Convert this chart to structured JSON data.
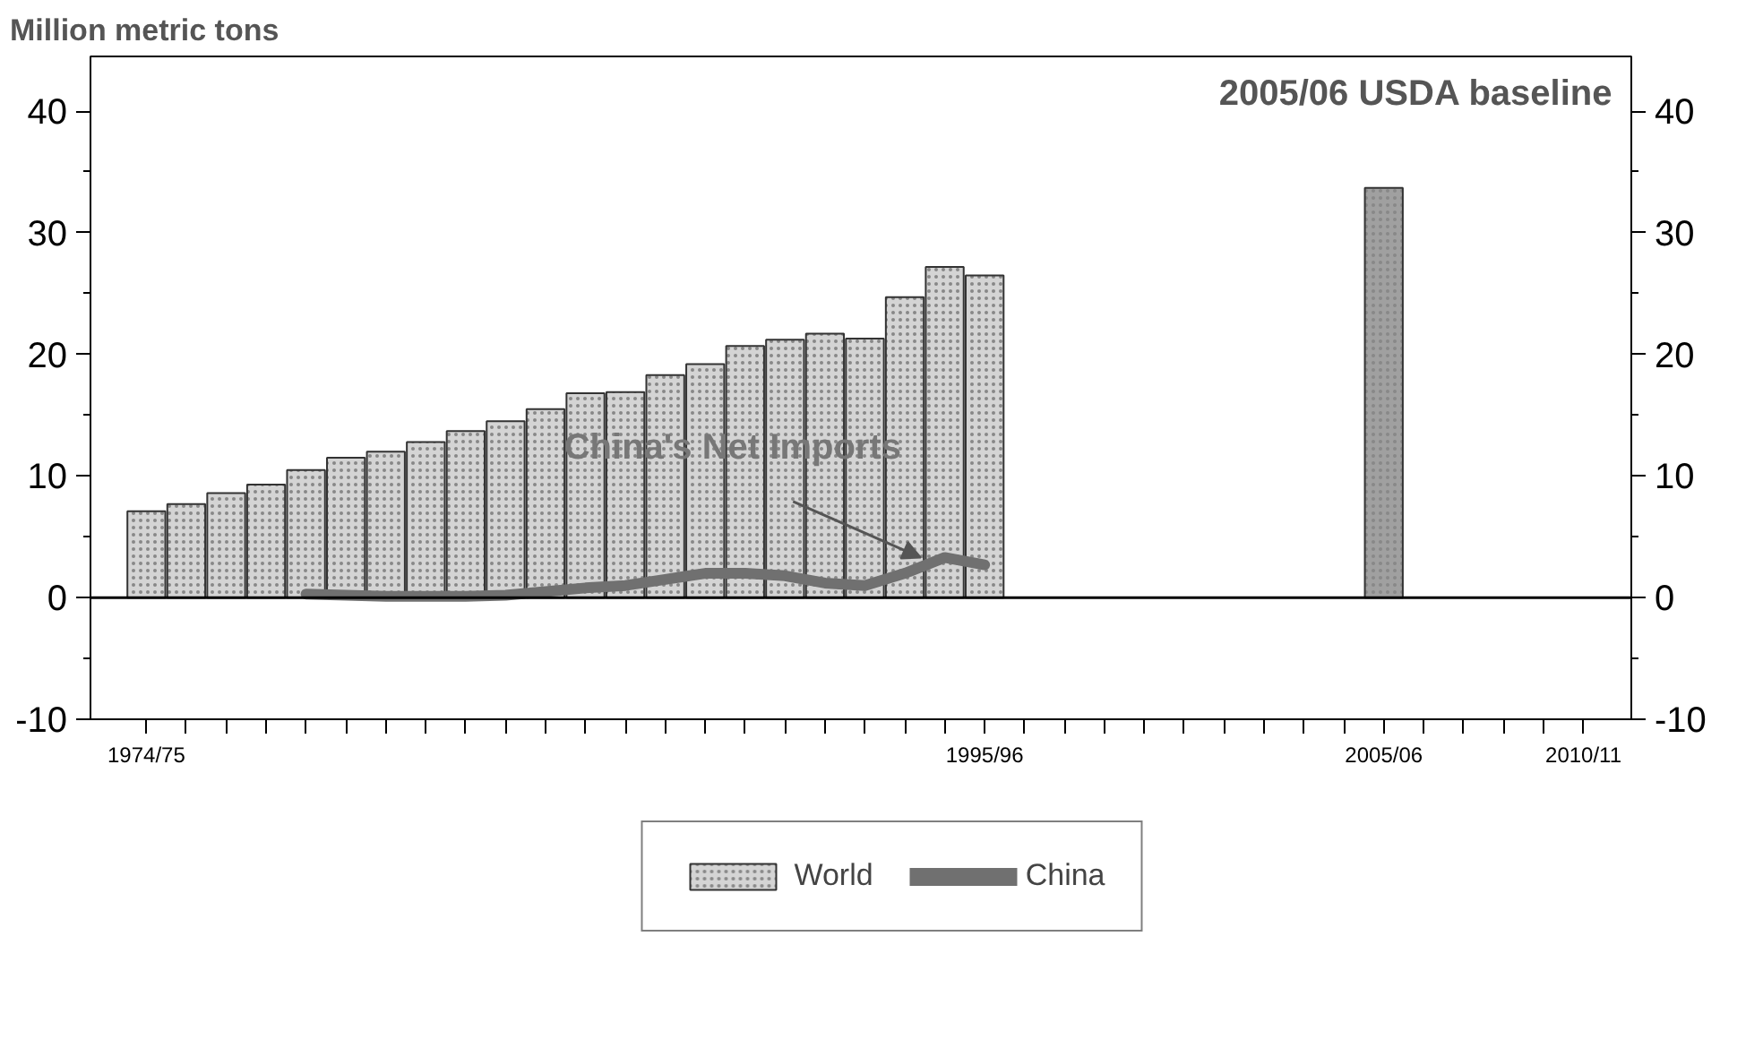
{
  "chart_data": {
    "type": "bar",
    "ylabel": "Million metric tons",
    "annotations": [
      {
        "text": "China's Net Imports",
        "y": 3.3
      },
      "2005/06 USDA baseline"
    ],
    "categories": [
      "1974/75",
      null,
      null,
      null,
      null,
      null,
      null,
      null,
      null,
      null,
      null,
      null,
      null,
      null,
      null,
      null,
      null,
      null,
      null,
      null,
      null,
      "1995/96",
      null,
      null,
      null,
      null,
      null,
      null,
      null,
      null,
      null,
      "2005/06",
      null,
      null,
      null,
      null,
      "2010/11"
    ],
    "series": [
      {
        "name": "World",
        "color": "#d4d4d4",
        "colors": [
          "#d4d4d4",
          "#d4d4d4",
          "#d4d4d4",
          "#d4d4d4",
          "#d4d4d4",
          "#d4d4d4",
          "#d4d4d4",
          "#d4d4d4",
          "#d4d4d4",
          "#d4d4d4",
          "#d4d4d4",
          "#d4d4d4",
          "#d4d4d4",
          "#d4d4d4",
          "#d4d4d4",
          "#d4d4d4",
          "#d4d4d4",
          "#d4d4d4",
          "#d4d4d4",
          "#d4d4d4",
          "#d4d4d4",
          "#d4d4d4",
          "#d4d4d4",
          "#d4d4d4",
          "#d4d4d4",
          "#d4d4d4",
          "#d4d4d4",
          "#d4d4d4",
          "#d4d4d4",
          "#d4d4d4",
          "#d4d4d4",
          "#a0a0a0",
          "#d4d4d4",
          "#d4d4d4",
          "#d4d4d4",
          "#d4d4d4",
          "#d4d4d4"
        ],
        "values": [
          7.1,
          7.7,
          8.6,
          9.3,
          10.5,
          11.5,
          12.0,
          12.8,
          13.7,
          14.5,
          15.5,
          16.8,
          16.9,
          18.3,
          19.2,
          20.7,
          21.2,
          21.7,
          21.3,
          24.7,
          27.2,
          26.5,
          null,
          null,
          null,
          null,
          null,
          null,
          null,
          null,
          null,
          33.7,
          null,
          null,
          null,
          null,
          null
        ]
      },
      {
        "name": "China",
        "type": "line",
        "color": "#707070",
        "values": [
          null,
          null,
          null,
          null,
          0.3,
          0.2,
          0.1,
          0.1,
          0.1,
          0.2,
          0.5,
          0.8,
          1.0,
          1.5,
          2.0,
          2.0,
          1.8,
          1.2,
          1.0,
          2.0,
          3.3,
          2.7,
          null,
          null,
          null,
          null,
          null,
          null,
          null,
          null,
          null,
          null,
          null,
          null,
          null,
          null,
          null
        ]
      }
    ],
    "ylim": [
      -10,
      44.5
    ],
    "yticks": [
      -10,
      0,
      10,
      20,
      30,
      40
    ],
    "y2lim": [
      -10,
      44.5
    ],
    "y2ticks": [
      -10,
      0,
      10,
      20,
      30,
      40
    ],
    "ref_lines": [
      {
        "axis": "y",
        "value": 0,
        "color": "#000000"
      }
    ],
    "legend": "bottom"
  }
}
